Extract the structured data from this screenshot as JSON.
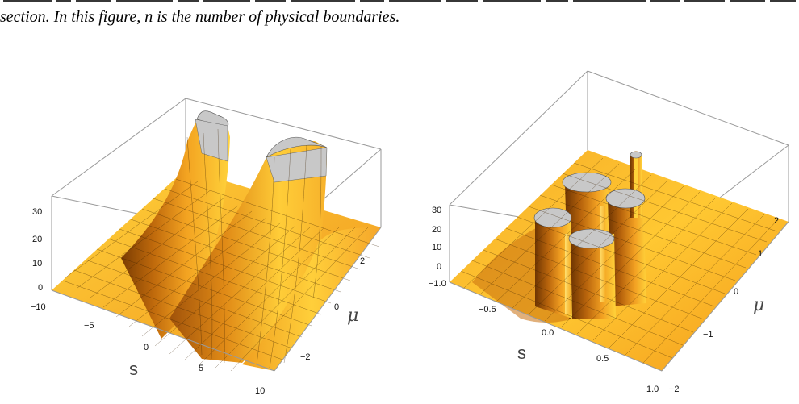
{
  "caption": {
    "line1": "figure-caption-partial-line",
    "line2": "section. In this figure, n is the number of physical boundaries."
  },
  "colors": {
    "surface_light": "#ffd23a",
    "surface_mid": "#f4a623",
    "surface_dark": "#8a4a05",
    "cap_fill": "#c8c8c8",
    "box_line": "#9a9a9a"
  },
  "plots": [
    {
      "type": "3d-surface",
      "x_axis_label": "s",
      "y_axis_label": "μ",
      "z_ticks": [
        "30",
        "20",
        "10",
        "0"
      ],
      "x_ticks": [
        "−10",
        "−5",
        "0",
        "5",
        "10"
      ],
      "y_ticks": [
        "2",
        "0",
        "−2"
      ],
      "x_range": [
        -10,
        10
      ],
      "y_range": [
        -3,
        3
      ],
      "z_range": [
        0,
        30
      ],
      "features": "two clipped ridges"
    },
    {
      "type": "3d-surface",
      "x_axis_label": "s",
      "y_axis_label": "μ",
      "z_ticks": [
        "30",
        "20",
        "10",
        "0"
      ],
      "x_ticks": [
        "−1.0",
        "−0.5",
        "0.0",
        "0.5",
        "1.0"
      ],
      "y_ticks": [
        "2",
        "1",
        "0",
        "−1",
        "−2"
      ],
      "x_range": [
        -1,
        1
      ],
      "y_range": [
        -2,
        2
      ],
      "z_range": [
        0,
        30
      ],
      "features": "four clipped peaks and one thin spike"
    }
  ]
}
